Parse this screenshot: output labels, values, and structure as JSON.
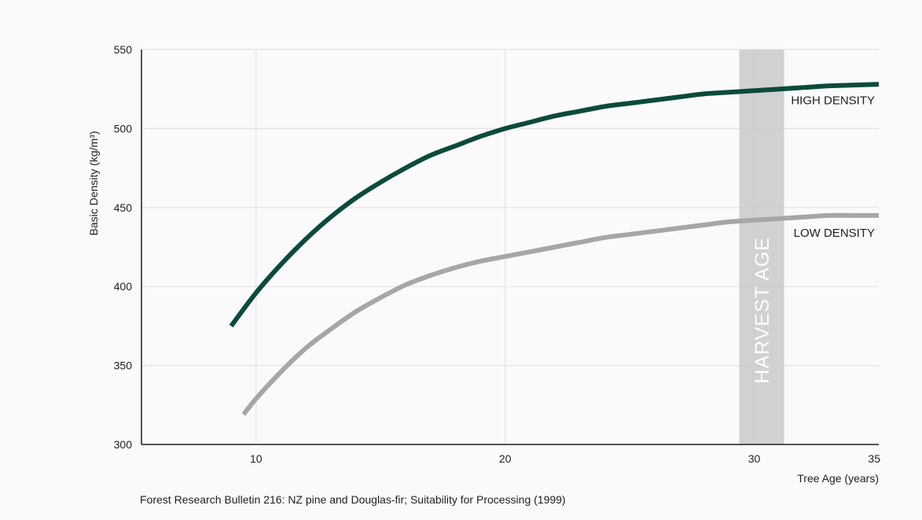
{
  "chart_data": {
    "type": "line",
    "xlabel": "Tree Age (years)",
    "ylabel": "Basic Density (kg/m³)",
    "xlim": [
      5.4,
      35
    ],
    "ylim": [
      300,
      550
    ],
    "x_ticks": [
      10,
      20,
      30,
      35
    ],
    "y_ticks": [
      300,
      350,
      400,
      450,
      500,
      550
    ],
    "grid": true,
    "series": [
      {
        "name": "HIGH DENSITY",
        "color": "#0b4a3c",
        "x": [
          9,
          10,
          11,
          12,
          13,
          14,
          15,
          16,
          17,
          18,
          19,
          20,
          21,
          22,
          23,
          24,
          25,
          26,
          27,
          28,
          29,
          30,
          31,
          32,
          33,
          34,
          35
        ],
        "y": [
          375,
          396,
          414,
          430,
          444,
          456,
          466,
          475,
          483,
          489,
          495,
          500,
          504,
          508,
          511,
          514,
          516,
          518,
          520,
          522,
          523,
          524,
          525,
          526,
          527,
          527.5,
          528
        ]
      },
      {
        "name": "LOW DENSITY",
        "color": "#a6a6a6",
        "x": [
          9.5,
          10,
          11,
          12,
          13,
          14,
          15,
          16,
          17,
          18,
          19,
          20,
          21,
          22,
          23,
          24,
          25,
          26,
          27,
          28,
          29,
          30,
          31,
          32,
          33,
          34,
          35
        ],
        "y": [
          319,
          329,
          346,
          361,
          373,
          384,
          393,
          401,
          407,
          412,
          416,
          419,
          422,
          425,
          428,
          431,
          433,
          435,
          437,
          439,
          441,
          442,
          443,
          444,
          445,
          445,
          445
        ]
      }
    ],
    "annotations": [
      {
        "type": "band",
        "x": [
          29.4,
          31.2
        ],
        "label": "HARVEST AGE"
      }
    ]
  },
  "source": "Forest Research Bulletin 216: NZ pine and Douglas-fir; Suitability for Processing (1999)"
}
